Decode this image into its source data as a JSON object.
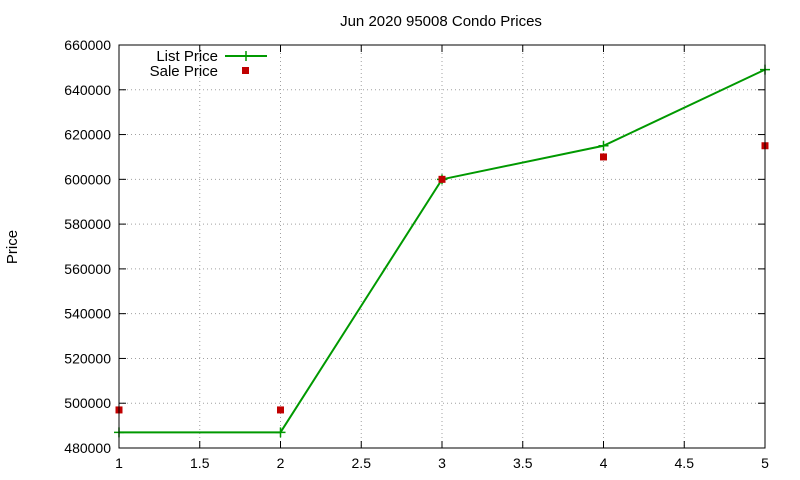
{
  "chart_data": {
    "type": "line",
    "title": "Jun 2020 95008 Condo Prices",
    "xlabel": "",
    "ylabel": "Price",
    "xlim": [
      1,
      5
    ],
    "ylim": [
      480000,
      660000
    ],
    "x_ticks": [
      "1",
      "1.5",
      "2",
      "2.5",
      "3",
      "3.5",
      "4",
      "4.5",
      "5"
    ],
    "y_ticks": [
      "480000",
      "500000",
      "520000",
      "540000",
      "560000",
      "580000",
      "600000",
      "620000",
      "640000",
      "660000"
    ],
    "grid": true,
    "legend_position": "top-left",
    "series": [
      {
        "name": "List Price",
        "style": "line-with-plus-markers",
        "color": "#009900",
        "x": [
          1,
          2,
          3,
          4,
          5
        ],
        "y": [
          487000,
          487000,
          600000,
          615000,
          649000
        ]
      },
      {
        "name": "Sale Price",
        "style": "square-markers",
        "color": "#c00000",
        "x": [
          1,
          2,
          3,
          4,
          5
        ],
        "y": [
          497000,
          497000,
          600000,
          610000,
          615000
        ]
      }
    ]
  }
}
